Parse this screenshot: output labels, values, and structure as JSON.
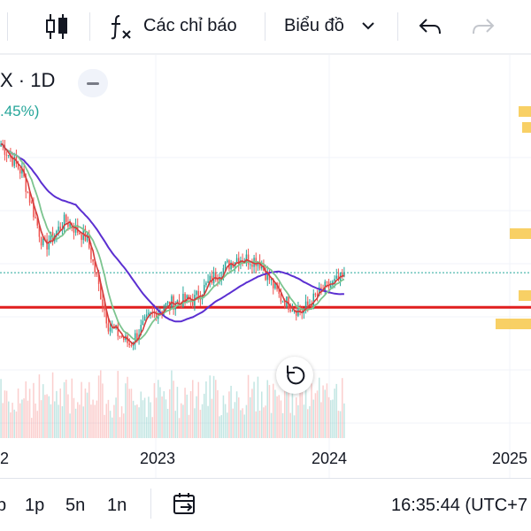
{
  "toolbar": {
    "indicators_label": "Các chỉ báo",
    "chart_menu_label": "Biểu đồ"
  },
  "legend": {
    "symbol_text": "X · 1D",
    "change_text": ".45%)"
  },
  "colors": {
    "up": "#26a69a",
    "down": "#ef5350",
    "ma_purple": "#5b2fd1",
    "ma_green": "#7cc48f",
    "ma_red": "#d43b3b",
    "support_line": "#e01e1e",
    "last_price_line": "#26a69a",
    "volume_profile": "#f7c84a"
  },
  "chart_data": {
    "type": "candlestick",
    "title": "",
    "xlabel": "",
    "ylabel": "",
    "x_ticks": [
      "2",
      "2023",
      "2024",
      "2025"
    ],
    "price_series_approx": [
      {
        "t": "mid-2022",
        "close": 92
      },
      {
        "t": "2022-09",
        "close": 80
      },
      {
        "t": "2022-10",
        "close": 50
      },
      {
        "t": "2022-11",
        "close": 61
      },
      {
        "t": "2022-12",
        "close": 54
      },
      {
        "t": "2023-01",
        "close": 19
      },
      {
        "t": "2023-02",
        "close": 11
      },
      {
        "t": "2023-03",
        "close": 23
      },
      {
        "t": "2023-05",
        "close": 28
      },
      {
        "t": "2023-07",
        "close": 29
      },
      {
        "t": "2023-09",
        "close": 39
      },
      {
        "t": "2023-10",
        "close": 46
      },
      {
        "t": "2023-11",
        "close": 45
      },
      {
        "t": "2023-12",
        "close": 30
      },
      {
        "t": "2024-01",
        "close": 24
      },
      {
        "t": "2024-02",
        "close": 33
      },
      {
        "t": "2024-03",
        "close": 38
      }
    ],
    "support_level": 26,
    "grid": true
  },
  "bottom": {
    "tf_cut": "p",
    "tf1": "1p",
    "tf2": "5n",
    "tf3": "1n",
    "clock": "16:35:44 (UTC+7"
  }
}
